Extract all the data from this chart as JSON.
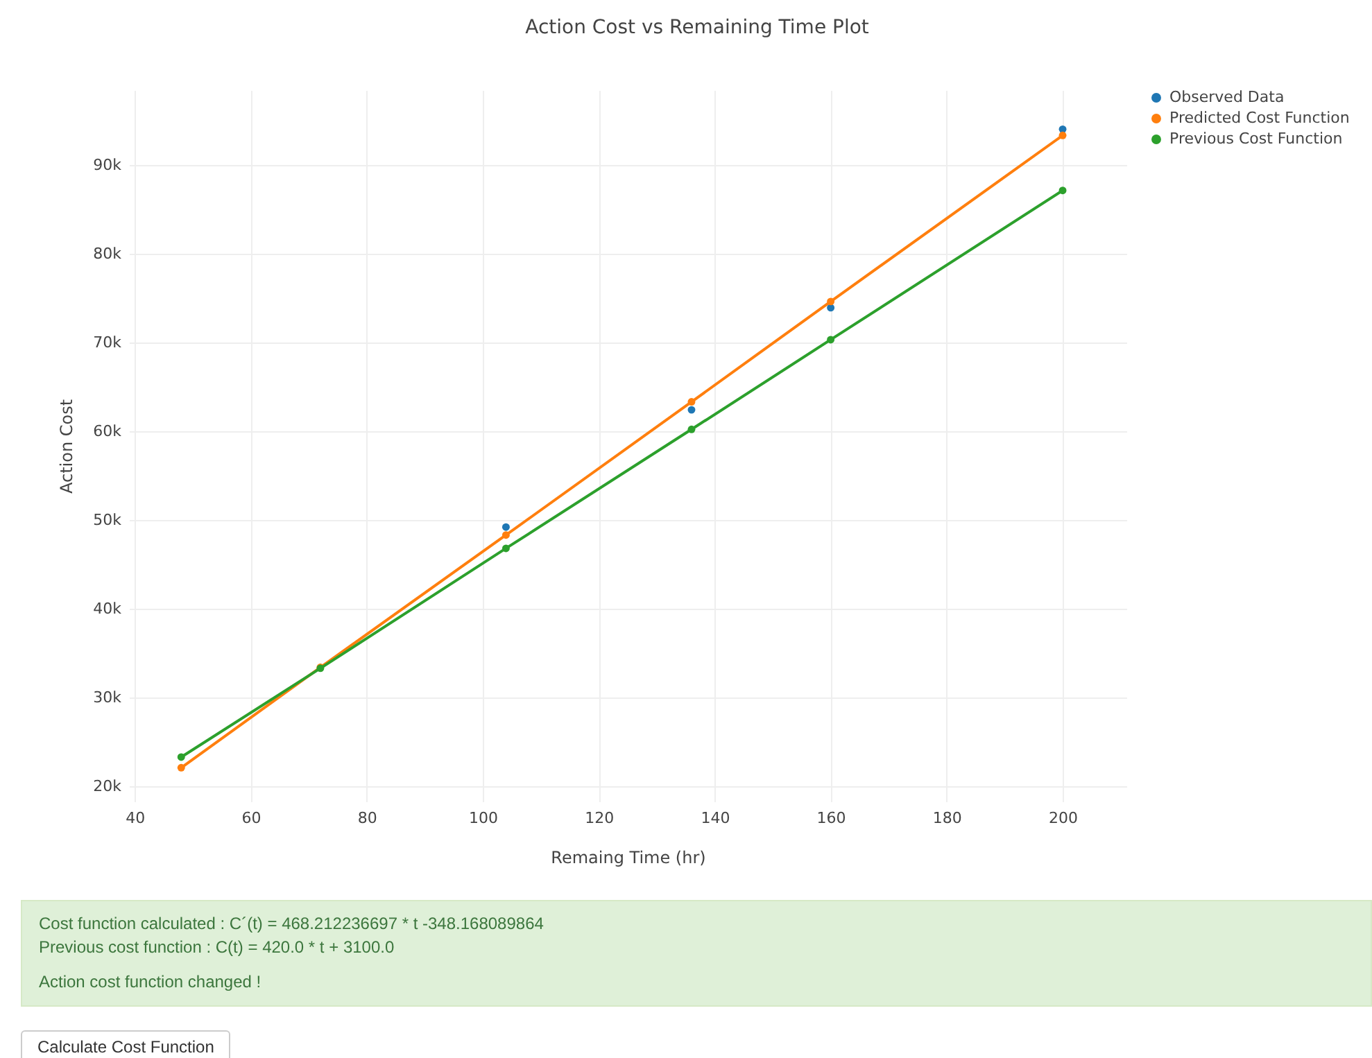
{
  "chart_data": {
    "type": "line",
    "title": "Action Cost vs Remaining Time Plot",
    "xlabel": "Remaing Time (hr)",
    "ylabel": "Action Cost",
    "x": [
      48,
      72,
      104,
      136,
      160,
      200
    ],
    "series": [
      {
        "name": "Observed Data",
        "type": "scatter",
        "color": "#1f77b4",
        "values": [
          null,
          null,
          49200,
          62400,
          73900,
          94000
        ]
      },
      {
        "name": "Predicted Cost Function",
        "type": "line",
        "color": "#ff7f0e",
        "values": [
          22100,
          33400,
          48300,
          63300,
          74600,
          93300
        ]
      },
      {
        "name": "Previous Cost Function",
        "type": "line",
        "color": "#2ca02c",
        "values": [
          23300,
          33300,
          46800,
          60200,
          70300,
          87100
        ]
      }
    ],
    "xlim": [
      39,
      211
    ],
    "xticks": [
      40,
      60,
      80,
      100,
      120,
      140,
      160,
      180,
      200
    ],
    "ylim": [
      18300,
      98400
    ],
    "yticks": [
      {
        "value": 20000,
        "label": "20k"
      },
      {
        "value": 30000,
        "label": "30k"
      },
      {
        "value": 40000,
        "label": "40k"
      },
      {
        "value": 50000,
        "label": "50k"
      },
      {
        "value": 60000,
        "label": "60k"
      },
      {
        "value": 70000,
        "label": "70k"
      },
      {
        "value": 80000,
        "label": "80k"
      },
      {
        "value": 90000,
        "label": "90k"
      }
    ],
    "grid": true,
    "legend": "top right",
    "marker": "circle",
    "annotations": [
      "Cost function calculated : C´(t) = 468.212236697 * t -348.168089864",
      "Previous cost function : C(t) = 420.0 * t + 3100.0",
      "Action cost function changed !",
      "Calculate Cost Function"
    ]
  }
}
